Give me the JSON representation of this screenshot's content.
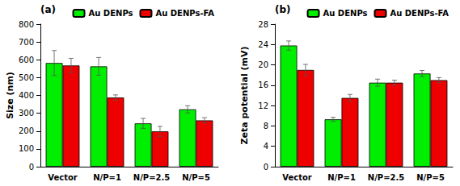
{
  "chart_data": [
    {
      "type": "bar",
      "annotation": "(a)",
      "categories": [
        "Vector",
        "N/P=1",
        "N/P=2.5",
        "N/P=5"
      ],
      "series": [
        {
          "name": "Au DENPs",
          "color": "#00EE00",
          "values": [
            582,
            563,
            243,
            322
          ],
          "errors": [
            70,
            50,
            28,
            20
          ]
        },
        {
          "name": "Au DENPs-FA",
          "color": "#EE0000",
          "values": [
            568,
            388,
            198,
            260
          ],
          "errors": [
            40,
            15,
            28,
            15
          ]
        }
      ],
      "ylabel": "Size (nm)",
      "ylim": [
        0,
        800
      ],
      "yticks": [
        0,
        100,
        200,
        300,
        400,
        500,
        600,
        700,
        800
      ],
      "grid": false,
      "legend": "upper right"
    },
    {
      "type": "bar",
      "annotation": "(b)",
      "categories": [
        "Vector",
        "N/P=1",
        "N/P=2.5",
        "N/P=5"
      ],
      "series": [
        {
          "name": "Au DENPs",
          "color": "#00EE00",
          "values": [
            23.8,
            9.3,
            16.5,
            18.3
          ],
          "errors": [
            0.9,
            0.4,
            0.7,
            0.6
          ]
        },
        {
          "name": "Au DENPs-FA",
          "color": "#EE0000",
          "values": [
            19.0,
            13.5,
            16.5,
            17.0
          ],
          "errors": [
            1.1,
            0.7,
            0.5,
            0.5
          ]
        }
      ],
      "ylabel": "Zeta potential (mV)",
      "ylim": [
        0,
        28
      ],
      "yticks": [
        0,
        4,
        8,
        12,
        16,
        20,
        24,
        28
      ],
      "grid": false,
      "legend": "upper right"
    }
  ]
}
